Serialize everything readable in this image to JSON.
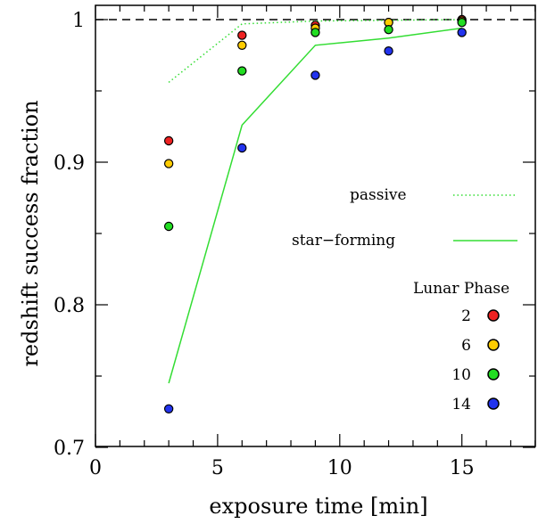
{
  "chart_data": {
    "type": "scatter",
    "xlabel": "exposure time [min]",
    "ylabel": "redshift success fraction",
    "xlim": [
      0,
      18
    ],
    "ylim": [
      0.7,
      1.005
    ],
    "x_ticks": [
      0,
      5,
      10,
      15
    ],
    "x_tick_labels": [
      "0",
      "5",
      "10",
      "15"
    ],
    "y_ticks": [
      0.7,
      0.8,
      0.9,
      1.0
    ],
    "y_tick_labels": [
      "0.7",
      "0.8",
      "0.9",
      "1"
    ],
    "reference_line": {
      "y": 1.0,
      "style": "dashed",
      "color": "#000000"
    },
    "lines": [
      {
        "name": "passive",
        "style": "dotted",
        "color": "#33dd33",
        "x": [
          3,
          6,
          9,
          12,
          15
        ],
        "y": [
          0.956,
          0.997,
          0.999,
          0.9995,
          1.0
        ]
      },
      {
        "name": "star−forming",
        "style": "solid",
        "color": "#33dd33",
        "x": [
          3,
          6,
          9,
          12,
          15
        ],
        "y": [
          0.745,
          0.926,
          0.982,
          0.987,
          0.994
        ]
      }
    ],
    "legend_title": "Lunar Phase",
    "series": [
      {
        "name": "2",
        "color": "#ee2222",
        "x": [
          3,
          6,
          9,
          12,
          15
        ],
        "y": [
          0.915,
          0.989,
          0.996,
          0.998,
          1.0
        ]
      },
      {
        "name": "6",
        "color": "#ffcc00",
        "x": [
          3,
          6,
          9,
          12,
          15
        ],
        "y": [
          0.899,
          0.982,
          0.994,
          0.998,
          0.999
        ]
      },
      {
        "name": "10",
        "color": "#22dd22",
        "x": [
          3,
          6,
          9,
          12,
          15
        ],
        "y": [
          0.855,
          0.964,
          0.991,
          0.993,
          0.998
        ]
      },
      {
        "name": "14",
        "color": "#2233ee",
        "x": [
          3,
          6,
          9,
          12,
          15
        ],
        "y": [
          0.727,
          0.91,
          0.961,
          0.978,
          0.991
        ]
      }
    ]
  }
}
